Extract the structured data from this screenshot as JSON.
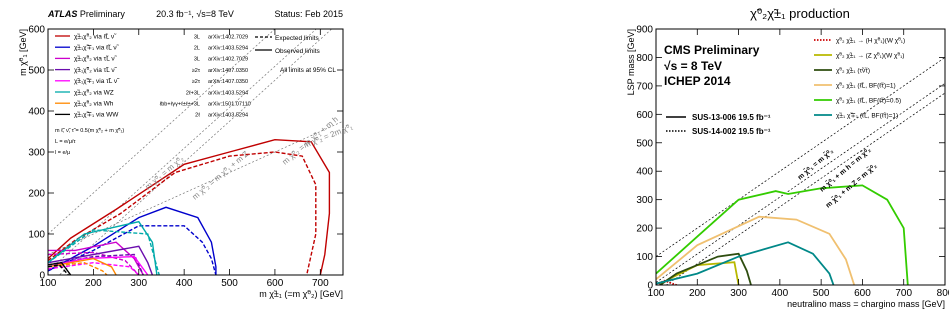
{
  "chart_data": [
    {
      "type": "line",
      "header_left": "ATLAS Preliminary",
      "header_left_bold": "ATLAS",
      "header_left_rest": " Preliminary",
      "header_center": "20.3 fb⁻¹, √s=8 TeV",
      "header_right": "Status: Feb 2015",
      "xlabel": "m χ̃±₁ (=m χ̃⁰₂) [GeV]",
      "ylabel": "m χ̃⁰₁ [GeV]",
      "xlim": [
        100,
        750
      ],
      "ylim": [
        0,
        600
      ],
      "xticks": [
        100,
        200,
        300,
        400,
        500,
        600,
        700
      ],
      "yticks": [
        0,
        100,
        200,
        300,
        400,
        500,
        600
      ],
      "style_legend": {
        "expected": "Expected limits",
        "observed": "Observed limits"
      },
      "note": "All limits at 95% CL",
      "mass_notes": [
        "m ℓ̃, ν̃, τ̃ = 0.5(m χ̃⁰₂ + m χ̃⁰₁)",
        "L = e/μ/τ",
        "l = e/μ"
      ],
      "diagonal_labels": [
        "m χ̃⁰₁ = m χ̃⁰₂",
        "m χ̃⁰₂ = m χ̃⁰₁ + m Z",
        "m χ̃⁰₂ = m χ̃⁰₁ + m h",
        "m χ̃⁰₂ = 2m χ̃⁰₁"
      ],
      "series": [
        {
          "label": "χ̃±₁χ̃⁰₂ via ℓ̃L ν̃",
          "final_state": "3L",
          "ref": "arXiv:1402.7029",
          "color": "#c00000",
          "observed": [
            [
              100,
              40
            ],
            [
              150,
              90
            ],
            [
              250,
              160
            ],
            [
              400,
              270
            ],
            [
              500,
              300
            ],
            [
              600,
              330
            ],
            [
              680,
              325
            ],
            [
              720,
              250
            ],
            [
              720,
              150
            ],
            [
              710,
              50
            ],
            [
              700,
              0
            ]
          ],
          "expected": [
            [
              100,
              35
            ],
            [
              160,
              85
            ],
            [
              260,
              150
            ],
            [
              380,
              250
            ],
            [
              500,
              290
            ],
            [
              600,
              300
            ],
            [
              660,
              290
            ],
            [
              690,
              220
            ],
            [
              690,
              100
            ],
            [
              670,
              0
            ]
          ]
        },
        {
          "label": "χ̃±₁χ̃∓₁ via ℓ̃L ν̃",
          "final_state": "2L",
          "ref": "arXiv:1403.5294",
          "color": "#0000cc",
          "observed": [
            [
              100,
              10
            ],
            [
              200,
              70
            ],
            [
              300,
              140
            ],
            [
              360,
              165
            ],
            [
              430,
              140
            ],
            [
              460,
              80
            ],
            [
              470,
              20
            ],
            [
              470,
              0
            ]
          ],
          "expected": [
            [
              100,
              10
            ],
            [
              200,
              60
            ],
            [
              300,
              120
            ],
            [
              400,
              120
            ],
            [
              440,
              80
            ],
            [
              460,
              40
            ],
            [
              470,
              0
            ]
          ]
        },
        {
          "label": "χ̃±₁χ̃⁰₂ via τ̃L ν̃",
          "final_state": "3L",
          "ref": "arXiv:1402.7029",
          "color": "#cc00cc",
          "observed": [
            [
              100,
              60
            ],
            [
              160,
              60
            ],
            [
              250,
              80
            ],
            [
              290,
              40
            ],
            [
              310,
              0
            ]
          ],
          "expected": [
            [
              100,
              50
            ],
            [
              200,
              55
            ],
            [
              270,
              35
            ],
            [
              300,
              0
            ]
          ]
        },
        {
          "label": "χ̃±₁χ̃⁰₂ via τ̃L ν̃",
          "final_state": "≥2τ",
          "ref": "arXiv:1407.0350",
          "color": "#6a0dad",
          "observed": [
            [
              100,
              30
            ],
            [
              200,
              50
            ],
            [
              300,
              70
            ],
            [
              320,
              30
            ],
            [
              330,
              0
            ]
          ],
          "expected": [
            [
              100,
              25
            ],
            [
              200,
              45
            ],
            [
              290,
              50
            ],
            [
              310,
              0
            ]
          ]
        },
        {
          "label": "χ̃±₁χ̃∓₁ via τ̃L ν̃",
          "final_state": "≥2τ",
          "ref": "arXiv:1407.0350",
          "color": "#ff00ff",
          "observed": [
            [
              100,
              20
            ],
            [
              180,
              40
            ],
            [
              290,
              45
            ],
            [
              320,
              0
            ]
          ],
          "expected": [
            [
              100,
              15
            ],
            [
              200,
              30
            ],
            [
              280,
              20
            ],
            [
              300,
              0
            ]
          ]
        },
        {
          "label": "χ̃±₁χ̃⁰₂ via WZ",
          "final_state": "2ℓ+3L",
          "ref": "arXiv:1403.5294",
          "color": "#00aaaa",
          "observed": [
            [
              100,
              30
            ],
            [
              180,
              100
            ],
            [
              300,
              130
            ],
            [
              330,
              80
            ],
            [
              340,
              0
            ]
          ],
          "expected": [
            [
              100,
              30
            ],
            [
              200,
              110
            ],
            [
              320,
              100
            ],
            [
              345,
              0
            ]
          ]
        },
        {
          "label": "χ̃±₁χ̃⁰₂ via Wh",
          "final_state": "ℓbb+ℓγγ+ℓ±ℓ±+3L",
          "ref": "arXiv:1501.07110",
          "color": "#ff8800",
          "observed": [
            [
              100,
              20
            ],
            [
              200,
              40
            ],
            [
              240,
              20
            ],
            [
              250,
              0
            ]
          ],
          "expected": [
            [
              100,
              20
            ],
            [
              180,
              30
            ],
            [
              220,
              10
            ],
            [
              230,
              0
            ]
          ]
        },
        {
          "label": "χ̃±₁χ̃∓₁ via WW",
          "final_state": "2ℓ",
          "ref": "arXiv:1403.5294",
          "color": "#000000",
          "observed": [
            [
              100,
              25
            ],
            [
              130,
              30
            ],
            [
              150,
              0
            ]
          ],
          "expected": [
            [
              100,
              20
            ],
            [
              125,
              25
            ],
            [
              145,
              0
            ]
          ]
        }
      ]
    },
    {
      "type": "line",
      "title": "χ̃⁰₂χ̃±₁ production",
      "experiment": "CMS Preliminary",
      "energy": "√s = 8 TeV",
      "conference": "ICHEP 2014",
      "xlabel": "neutralino mass = chargino mass [GeV]",
      "ylabel": "LSP mass [GeV]",
      "xlim": [
        100,
        800
      ],
      "ylim": [
        0,
        900
      ],
      "xticks": [
        100,
        200,
        300,
        400,
        500,
        600,
        700,
        800
      ],
      "yticks": [
        0,
        100,
        200,
        300,
        400,
        500,
        600,
        700,
        800,
        900
      ],
      "analysis_legend": [
        {
          "label": "SUS-13-006  19.5 fb⁻¹",
          "style": "solid"
        },
        {
          "label": "SUS-14-002  19.5 fb⁻¹",
          "style": "dotted"
        }
      ],
      "diagonal_labels": [
        "m χ̃⁰₁ = m χ̃⁰₂",
        "m χ̃⁰₁ + m h = m χ̃⁰₂",
        "m χ̃⁰₁ + m Z = m χ̃⁰₂"
      ],
      "series": [
        {
          "label": "χ̃⁰₂ χ̃±₁ → (H χ̃⁰₁)(W χ̃⁰₁)",
          "color": "#cc0000",
          "style": "dotted",
          "points": [
            [
              100,
              0
            ],
            [
              120,
              15
            ],
            [
              140,
              5
            ],
            [
              150,
              0
            ]
          ]
        },
        {
          "label": "χ̃⁰₂ χ̃±₁ → (Z χ̃⁰₁)(W χ̃⁰₁)",
          "color": "#b8b800",
          "style": "solid",
          "points": [
            [
              110,
              0
            ],
            [
              130,
              20
            ],
            [
              200,
              70
            ],
            [
              290,
              80
            ],
            [
              300,
              0
            ]
          ]
        },
        {
          "label": "χ̃⁰₂ χ̃±₁ (τ̃ν̃τ)",
          "color": "#2e4d0f",
          "style": "solid",
          "points": [
            [
              110,
              0
            ],
            [
              150,
              40
            ],
            [
              250,
              100
            ],
            [
              300,
              110
            ],
            [
              320,
              50
            ],
            [
              330,
              0
            ]
          ]
        },
        {
          "label": "χ̃⁰₂ χ̃±₁ (ℓ̃L, BF(ℓ̃τ)=1)",
          "color": "#f0c070",
          "style": "solid",
          "points": [
            [
              100,
              20
            ],
            [
              200,
              140
            ],
            [
              350,
              240
            ],
            [
              440,
              230
            ],
            [
              520,
              180
            ],
            [
              560,
              90
            ],
            [
              580,
              0
            ]
          ]
        },
        {
          "label": "χ̃⁰₂ χ̃±₁ (ℓ̃L, BF(ℓ̃τ)=0.5)",
          "color": "#33cc00",
          "style": "solid",
          "points": [
            [
              100,
              40
            ],
            [
              200,
              170
            ],
            [
              300,
              300
            ],
            [
              390,
              330
            ],
            [
              420,
              320
            ],
            [
              500,
              340
            ],
            [
              600,
              350
            ],
            [
              660,
              300
            ],
            [
              700,
              200
            ],
            [
              710,
              0
            ]
          ]
        },
        {
          "label": "χ̃±₁ χ̃∓₁ (ℓ̃L, BF(ℓ̃τ)=1)",
          "color": "#008888",
          "style": "solid",
          "points": [
            [
              100,
              5
            ],
            [
              200,
              40
            ],
            [
              300,
              100
            ],
            [
              420,
              150
            ],
            [
              480,
              110
            ],
            [
              520,
              40
            ],
            [
              530,
              0
            ]
          ]
        }
      ]
    }
  ]
}
